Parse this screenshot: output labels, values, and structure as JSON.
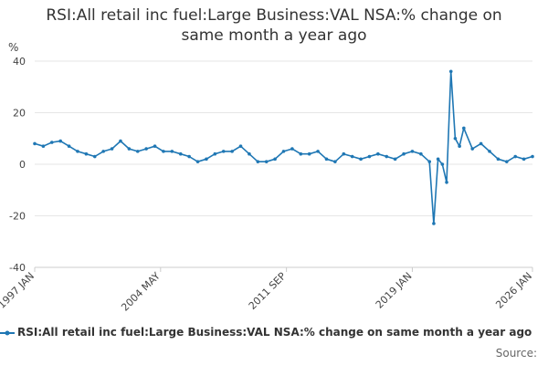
{
  "chart": {
    "title_line1": "RSI:All retail inc fuel:Large Business:VAL NSA:% change on",
    "title_line2": "same month a year ago",
    "unit": "%",
    "legend_label": "RSI:All retail inc fuel:Large Business:VAL NSA:% change on same month a year ago",
    "source_label": "Source:"
  },
  "chart_data": {
    "type": "line",
    "title": "RSI:All retail inc fuel:Large Business:VAL NSA:% change on same month a year ago",
    "ylabel": "%",
    "ylim": [
      -40,
      40
    ],
    "yticks": [
      40,
      20,
      0,
      -20,
      -40
    ],
    "xlim": [
      "1997-01",
      "2026-01"
    ],
    "xticks": [
      "1997 JAN",
      "2004 MAY",
      "2011 SEP",
      "2019 JAN",
      "2026 JAN"
    ],
    "grid": true,
    "legend": "bottom",
    "series_color": "#1f77b4",
    "series": [
      {
        "name": "RSI:All retail inc fuel:Large Business:VAL NSA:% change on same month a year ago",
        "points": [
          [
            "1997-01",
            8
          ],
          [
            "1997-07",
            7
          ],
          [
            "1998-01",
            8.5
          ],
          [
            "1998-07",
            9
          ],
          [
            "1999-01",
            7
          ],
          [
            "1999-07",
            5
          ],
          [
            "2000-01",
            4
          ],
          [
            "2000-07",
            3
          ],
          [
            "2001-01",
            5
          ],
          [
            "2001-07",
            6
          ],
          [
            "2002-01",
            9
          ],
          [
            "2002-07",
            6
          ],
          [
            "2003-01",
            5
          ],
          [
            "2003-07",
            6
          ],
          [
            "2004-01",
            7
          ],
          [
            "2004-07",
            5
          ],
          [
            "2005-01",
            5
          ],
          [
            "2005-07",
            4
          ],
          [
            "2006-01",
            3
          ],
          [
            "2006-07",
            1
          ],
          [
            "2007-01",
            2
          ],
          [
            "2007-07",
            4
          ],
          [
            "2008-01",
            5
          ],
          [
            "2008-07",
            5
          ],
          [
            "2009-01",
            7
          ],
          [
            "2009-07",
            4
          ],
          [
            "2010-01",
            1
          ],
          [
            "2010-07",
            1
          ],
          [
            "2011-01",
            2
          ],
          [
            "2011-07",
            5
          ],
          [
            "2012-01",
            6
          ],
          [
            "2012-07",
            4
          ],
          [
            "2013-01",
            4
          ],
          [
            "2013-07",
            5
          ],
          [
            "2014-01",
            2
          ],
          [
            "2014-07",
            1
          ],
          [
            "2015-01",
            4
          ],
          [
            "2015-07",
            3
          ],
          [
            "2016-01",
            2
          ],
          [
            "2016-07",
            3
          ],
          [
            "2017-01",
            4
          ],
          [
            "2017-07",
            3
          ],
          [
            "2018-01",
            2
          ],
          [
            "2018-07",
            4
          ],
          [
            "2019-01",
            5
          ],
          [
            "2019-07",
            4
          ],
          [
            "2020-01",
            1
          ],
          [
            "2020-04",
            -23
          ],
          [
            "2020-07",
            2
          ],
          [
            "2020-10",
            0
          ],
          [
            "2021-01",
            -7
          ],
          [
            "2021-04",
            36
          ],
          [
            "2021-07",
            10
          ],
          [
            "2021-10",
            7
          ],
          [
            "2022-01",
            14
          ],
          [
            "2022-07",
            6
          ],
          [
            "2023-01",
            8
          ],
          [
            "2023-07",
            5
          ],
          [
            "2024-01",
            2
          ],
          [
            "2024-07",
            1
          ],
          [
            "2025-01",
            3
          ],
          [
            "2025-07",
            2
          ],
          [
            "2026-01",
            3
          ]
        ]
      }
    ]
  }
}
